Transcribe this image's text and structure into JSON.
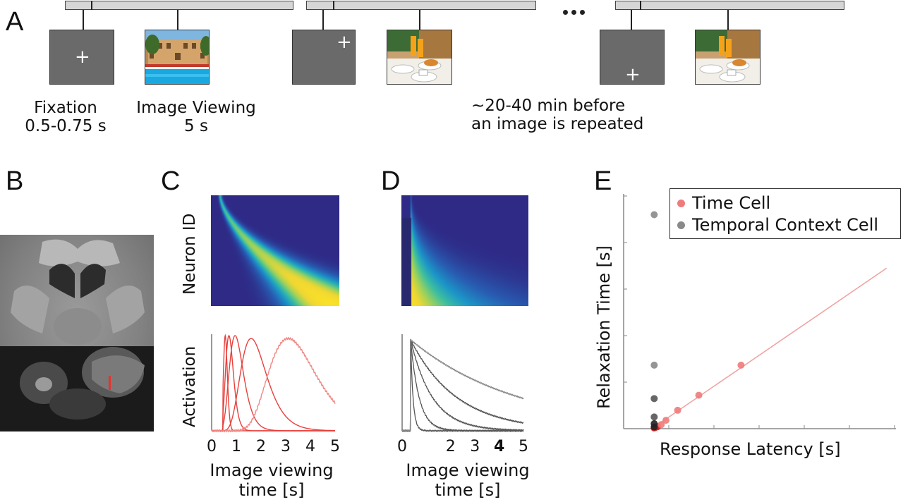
{
  "panel_a": {
    "label": "A",
    "ellipsis": "•••",
    "fixation_caption_1": "Fixation",
    "fixation_caption_2": "0.5-0.75 s",
    "viewing_caption_1": "Image Viewing",
    "viewing_caption_2": "5 s",
    "repeat_caption_1": "~20-40 min before",
    "repeat_caption_2": "an image is repeated",
    "fixation_cross": "+"
  },
  "panel_b": {
    "label": "B"
  },
  "panel_c": {
    "label": "C",
    "heatmap_ylabel": "Neuron ID",
    "trace_ylabel": "Activation",
    "xlabel_1": "Image viewing",
    "xlabel_2": "time [s]",
    "xticks": [
      "0",
      "1",
      "2",
      "3",
      "4",
      "5"
    ]
  },
  "panel_d": {
    "label": "D",
    "xlabel_1": "Image viewing",
    "xlabel_2": "time [s]",
    "xticks": [
      "0",
      "2",
      "3",
      "4",
      "5"
    ]
  },
  "panel_e": {
    "label": "E",
    "xlabel": "Response Latency [s]",
    "ylabel": "Relaxation Time [s]",
    "legend": [
      "Time Cell",
      "Temporal Context Cell"
    ]
  },
  "colors": {
    "time_cell": "#f07b7b",
    "temporal_context_cell": "#8a8a8a",
    "heatmap_low": "#2e2a86",
    "heatmap_high": "#f5e12a",
    "trace_red": "#e8403c",
    "trace_gray": "#555555",
    "screen_gray": "#6a6a6a"
  },
  "chart_data": [
    {
      "type": "line",
      "name": "panel-c-activation",
      "x": [
        0,
        1,
        2,
        3,
        4,
        5
      ],
      "xlim": [
        0,
        5
      ],
      "series": [
        {
          "peak": 0.55,
          "width": 0.07,
          "amp": 1.0
        },
        {
          "peak": 0.7,
          "width": 0.16,
          "amp": 1.0
        },
        {
          "peak": 0.95,
          "width": 0.3,
          "amp": 1.0
        },
        {
          "peak": 1.6,
          "width": 0.55,
          "amp": 0.97
        },
        {
          "peak": 3.1,
          "width": 1.0,
          "amp": 0.97
        }
      ]
    },
    {
      "type": "line",
      "name": "panel-d-activation",
      "xlim": [
        0,
        5
      ],
      "series": [
        {
          "onset": 0.35,
          "tau": 0.1
        },
        {
          "onset": 0.35,
          "tau": 0.35
        },
        {
          "onset": 0.35,
          "tau": 0.9
        },
        {
          "onset": 0.35,
          "tau": 1.9
        },
        {
          "onset": 0.35,
          "tau": 4.5
        }
      ]
    },
    {
      "type": "scatter",
      "name": "panel-e",
      "xlabel": "Response Latency [s]",
      "ylabel": "Relaxation Time [s]",
      "series": [
        {
          "name": "Time Cell",
          "points": [
            [
              0.05,
              0.02
            ],
            [
              0.08,
              0.04
            ],
            [
              0.12,
              0.06
            ],
            [
              0.2,
              0.12
            ],
            [
              0.3,
              0.25
            ],
            [
              0.55,
              0.55
            ],
            [
              1.0,
              1.0
            ],
            [
              1.9,
              1.9
            ]
          ]
        },
        {
          "name": "Temporal Context Cell",
          "points": [
            [
              0.05,
              6.4
            ],
            [
              0.05,
              1.9
            ],
            [
              0.05,
              0.9
            ],
            [
              0.05,
              0.35
            ],
            [
              0.05,
              0.15
            ],
            [
              0.05,
              0.05
            ]
          ]
        }
      ],
      "fit_line": [
        [
          0,
          0
        ],
        [
          5.0,
          4.8
        ]
      ]
    }
  ]
}
